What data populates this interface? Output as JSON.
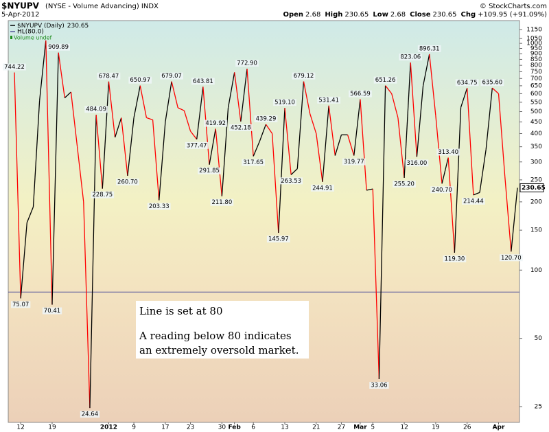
{
  "header": {
    "symbol": "$NYUPV",
    "description": "(NYSE - Volume Advancing) INDX",
    "date": "5-Apr-2012",
    "copyright": "© StockCharts.com",
    "quote": [
      {
        "label": "Open",
        "value": "2.68"
      },
      {
        "label": "High",
        "value": "230.65"
      },
      {
        "label": "Low",
        "value": "2.68"
      },
      {
        "label": "Close",
        "value": "230.65"
      },
      {
        "label": "Chg",
        "value": "+109.95 (+91.09%)"
      }
    ]
  },
  "chart_data": {
    "type": "line",
    "log_scale": true,
    "grid": false,
    "categories": [
      null,
      "12",
      null,
      null,
      null,
      null,
      "19",
      null,
      null,
      null,
      null,
      null,
      null,
      null,
      null,
      "2012",
      null,
      null,
      null,
      "9",
      null,
      null,
      null,
      null,
      "17",
      null,
      null,
      null,
      "23",
      null,
      null,
      null,
      null,
      "30",
      null,
      "Feb",
      null,
      null,
      "6",
      null,
      null,
      null,
      null,
      "13",
      null,
      null,
      null,
      null,
      "21",
      null,
      null,
      null,
      "27",
      null,
      null,
      "Mar",
      null,
      "5",
      null,
      null,
      null,
      null,
      "12",
      null,
      null,
      null,
      null,
      "19",
      null,
      null,
      null,
      null,
      "26",
      null,
      null,
      null,
      null,
      "Apr",
      null,
      null,
      null
    ],
    "series": [
      {
        "name": "$NYUPV (Daily)",
        "up_color": "#000000",
        "down_color": "#ff0000",
        "values": [
          744.22,
          75.07,
          162,
          190,
          560,
          1030,
          70.41,
          909.89,
          575,
          610,
          350,
          200,
          24.64,
          484.09,
          228.75,
          678.47,
          385,
          470,
          260.7,
          470,
          650.97,
          470,
          460,
          203.33,
          450,
          679.07,
          520,
          505,
          410,
          377.47,
          643.81,
          291.85,
          419.92,
          211.8,
          520,
          745,
          452.18,
          772.9,
          317.65,
          370,
          439.29,
          400,
          145.97,
          519.1,
          263.53,
          280,
          679.12,
          490,
          400,
          244.91,
          531.41,
          320,
          395,
          395,
          319.77,
          566.59,
          225,
          228,
          33.06,
          651.26,
          600,
          470,
          255.2,
          823.06,
          316,
          650,
          896.31,
          480,
          240.7,
          313.4,
          119.3,
          522,
          634.75,
          214.44,
          220,
          340,
          635.6,
          600,
          260,
          120.7,
          230.65
        ],
        "value_labels": [
          "744.22",
          "75.07",
          null,
          null,
          null,
          null,
          "70.41",
          "909.89",
          null,
          null,
          null,
          null,
          "24.64",
          "484.09",
          "228.75",
          "678.47",
          null,
          null,
          "260.70",
          null,
          "650.97",
          null,
          null,
          "203.33",
          null,
          "679.07",
          null,
          null,
          null,
          "377.47",
          "643.81",
          "291.85",
          "419.92",
          "211.80",
          null,
          null,
          "452.18",
          "772.90",
          "317.65",
          null,
          "439.29",
          null,
          "145.97",
          "519.10",
          "263.53",
          null,
          "679.12",
          null,
          null,
          "244.91",
          "531.41",
          null,
          null,
          null,
          "319.77",
          "566.59",
          null,
          null,
          "33.06",
          "651.26",
          null,
          null,
          "255.20",
          "823.06",
          "316.00",
          null,
          "896.31",
          null,
          "240.70",
          "313.40",
          "119.30",
          null,
          "634.75",
          "214.44",
          null,
          null,
          "635.60",
          null,
          null,
          "120.70",
          null
        ]
      }
    ],
    "hline": {
      "name": "HL(80.0)",
      "value": 80,
      "color": "#55559a"
    },
    "volume_legend": {
      "text": "Volume undef",
      "color": "#1a8a1a"
    },
    "ylim": [
      21.3,
      1260
    ],
    "yticks": [
      25,
      50,
      100,
      150,
      200,
      250,
      300,
      350,
      400,
      450,
      500,
      550,
      600,
      650,
      700,
      750,
      800,
      850,
      900,
      950,
      1000,
      1050,
      1150
    ],
    "annotation": [
      "Line is set at 80",
      "A reading below 80 indicates",
      "an extremely oversold market."
    ]
  }
}
